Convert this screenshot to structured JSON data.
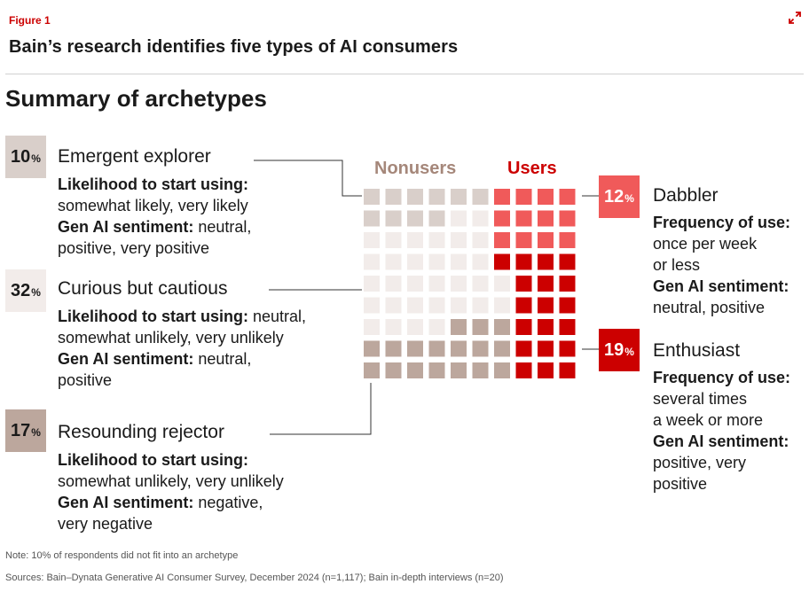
{
  "figure_label": "Figure 1",
  "figure_title": "Bain’s research identifies five types of AI consumers",
  "summary_title": "Summary of archetypes",
  "icons": {
    "expand": "expand-icon"
  },
  "legend": {
    "nonusers": "Nonusers",
    "users": "Users"
  },
  "colors": {
    "emergent": "#d9cfca",
    "curious": "#f2ecea",
    "rejector": "#bca79d",
    "dabbler": "#f05a5a",
    "enthusiast": "#cc0000",
    "nonusers_text": "#a5877a",
    "users_text": "#cc0000"
  },
  "archetypes": [
    {
      "id": "emergent",
      "pct": "10",
      "pct_sign": "%",
      "name": "Emergent explorer",
      "lines": [
        {
          "label": "Likelihood to start using:",
          "value": ""
        },
        {
          "label": "",
          "value": "somewhat likely, very likely"
        },
        {
          "label": "Gen AI sentiment:",
          "value": " neutral,"
        },
        {
          "label": "",
          "value": "positive, very positive"
        }
      ]
    },
    {
      "id": "curious",
      "pct": "32",
      "pct_sign": "%",
      "name": "Curious but cautious",
      "lines": [
        {
          "label": "Likelihood to start using:",
          "value": " neutral,"
        },
        {
          "label": "",
          "value": "somewhat unlikely, very unlikely"
        },
        {
          "label": "Gen AI sentiment:",
          "value": " neutral,"
        },
        {
          "label": "",
          "value": "positive"
        }
      ]
    },
    {
      "id": "rejector",
      "pct": "17",
      "pct_sign": "%",
      "name": "Resounding rejector",
      "lines": [
        {
          "label": "Likelihood to start using:",
          "value": ""
        },
        {
          "label": "",
          "value": "somewhat unlikely, very unlikely"
        },
        {
          "label": "Gen AI sentiment:",
          "value": " negative,"
        },
        {
          "label": "",
          "value": "very negative"
        }
      ]
    },
    {
      "id": "dabbler",
      "pct": "12",
      "pct_sign": "%",
      "name": "Dabbler",
      "lines": [
        {
          "label": "Frequency of use:",
          "value": ""
        },
        {
          "label": "",
          "value": "once per week"
        },
        {
          "label": "",
          "value": "or less"
        },
        {
          "label": "Gen AI sentiment:",
          "value": ""
        },
        {
          "label": "",
          "value": "neutral, positive"
        }
      ]
    },
    {
      "id": "enthusiast",
      "pct": "19",
      "pct_sign": "%",
      "name": "Enthusiast",
      "lines": [
        {
          "label": "Frequency of use:",
          "value": ""
        },
        {
          "label": "",
          "value": "several times"
        },
        {
          "label": "",
          "value": "a week or more"
        },
        {
          "label": "Gen AI sentiment:",
          "value": ""
        },
        {
          "label": "",
          "value": "positive, very"
        },
        {
          "label": "",
          "value": "positive"
        }
      ]
    }
  ],
  "chart_data": {
    "type": "waffle",
    "rows": 9,
    "cols": 10,
    "groups": [
      {
        "name": "Nonusers",
        "segments": [
          "emergent",
          "curious",
          "rejector"
        ]
      },
      {
        "name": "Users",
        "segments": [
          "dabbler",
          "enthusiast"
        ]
      }
    ],
    "grid": [
      [
        "emergent",
        "emergent",
        "emergent",
        "emergent",
        "emergent",
        "emergent",
        "dabbler",
        "dabbler",
        "dabbler",
        "dabbler"
      ],
      [
        "emergent",
        "emergent",
        "emergent",
        "emergent",
        "curious",
        "curious",
        "dabbler",
        "dabbler",
        "dabbler",
        "dabbler"
      ],
      [
        "curious",
        "curious",
        "curious",
        "curious",
        "curious",
        "curious",
        "dabbler",
        "dabbler",
        "dabbler",
        "dabbler"
      ],
      [
        "curious",
        "curious",
        "curious",
        "curious",
        "curious",
        "curious",
        "enthusiast",
        "enthusiast",
        "enthusiast",
        "enthusiast"
      ],
      [
        "curious",
        "curious",
        "curious",
        "curious",
        "curious",
        "curious",
        "curious",
        "enthusiast",
        "enthusiast",
        "enthusiast"
      ],
      [
        "curious",
        "curious",
        "curious",
        "curious",
        "curious",
        "curious",
        "curious",
        "enthusiast",
        "enthusiast",
        "enthusiast"
      ],
      [
        "curious",
        "curious",
        "curious",
        "curious",
        "rejector",
        "rejector",
        "rejector",
        "enthusiast",
        "enthusiast",
        "enthusiast"
      ],
      [
        "rejector",
        "rejector",
        "rejector",
        "rejector",
        "rejector",
        "rejector",
        "rejector",
        "enthusiast",
        "enthusiast",
        "enthusiast"
      ],
      [
        "rejector",
        "rejector",
        "rejector",
        "rejector",
        "rejector",
        "rejector",
        "rejector",
        "enthusiast",
        "enthusiast",
        "enthusiast"
      ]
    ]
  },
  "note": "Note: 10% of respondents did not fit into an archetype",
  "sources": "Sources: Bain–Dynata Generative AI Consumer Survey, December 2024 (n=1,117); Bain in-depth interviews (n=20)"
}
